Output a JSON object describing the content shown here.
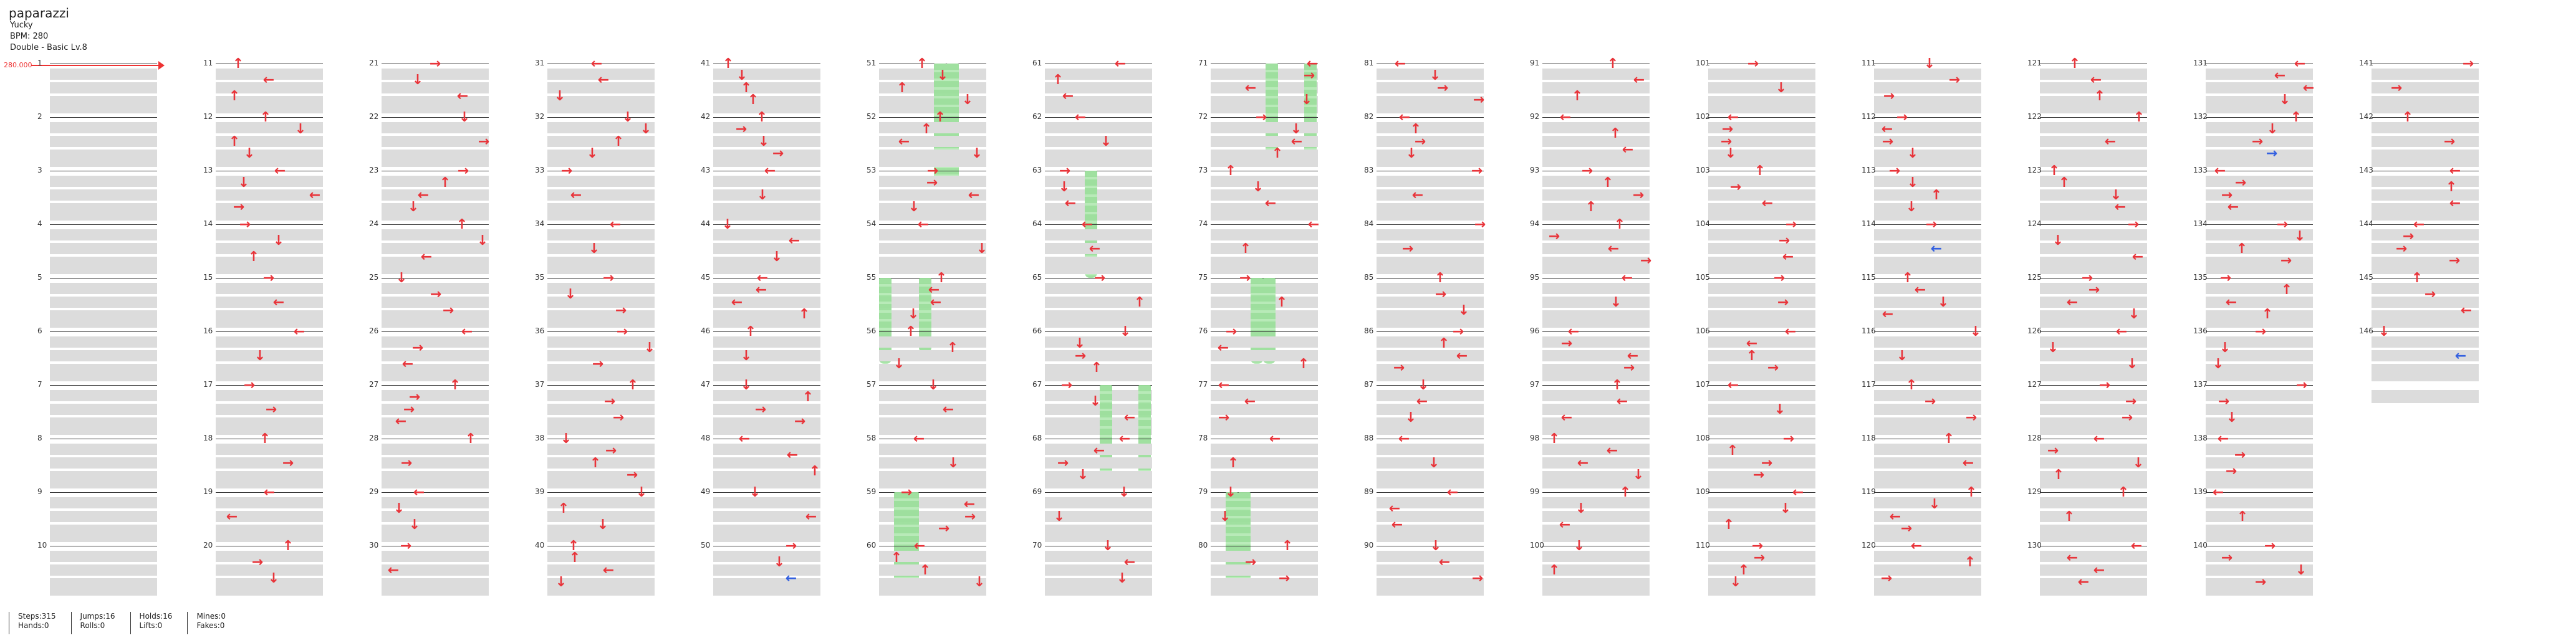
{
  "song": {
    "title": "paparazzi",
    "artist": "Yucky",
    "bpm_text": "BPM: 280",
    "difficulty": "Double - Basic Lv.8"
  },
  "bpm_change": "280.000",
  "measure_count": 146,
  "colors": {
    "arrow": "#e8343a",
    "mine_or_blue": "#3360e0",
    "hold": "#9bdf9b",
    "band": "#dcdcdc"
  },
  "icons": {
    "up": "up-arrow-icon",
    "down": "down-arrow-icon",
    "left": "left-arrow-icon",
    "right": "right-arrow-icon"
  },
  "stats": [
    {
      "top": "Steps:315",
      "bottom": "Hands:0"
    },
    {
      "top": "Jumps:16",
      "bottom": "Rolls:0"
    },
    {
      "top": "Holds:16",
      "bottom": "Lifts:0"
    },
    {
      "top": "Mines:0",
      "bottom": "Fakes:0"
    }
  ]
}
